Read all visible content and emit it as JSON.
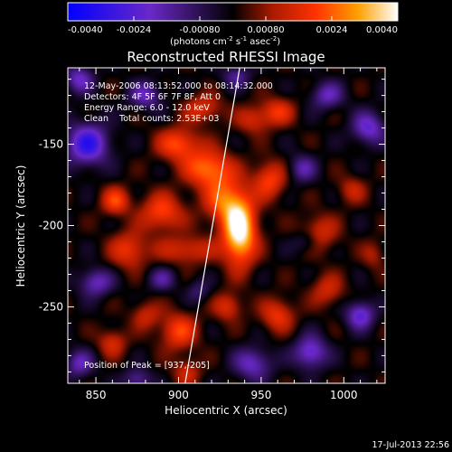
{
  "chart_data": {
    "type": "heatmap",
    "title": "Reconstructed RHESSI Image",
    "xlabel": "Heliocentric X (arcsec)",
    "ylabel": "Heliocentric Y (arcsec)",
    "xlim": [
      833,
      1025
    ],
    "ylim": [
      -297,
      -103
    ],
    "x_ticks": [
      850,
      900,
      950,
      1000
    ],
    "x_tick_labels": [
      "850",
      "900",
      "950",
      "1000"
    ],
    "y_ticks": [
      -150,
      -200,
      -250
    ],
    "y_tick_labels": [
      "-150",
      "-200",
      "-250"
    ],
    "colorbar": {
      "min": -0.004,
      "max": 0.004,
      "ticks": [
        -0.004,
        -0.0024,
        -0.0008,
        0.0008,
        0.0024,
        0.004
      ],
      "tick_labels": [
        "-0.0040",
        "-0.0024",
        "-0.00080",
        "0.00080",
        "0.0024",
        "0.0040"
      ],
      "label_main": "(photons cm",
      "label_exp1": "-2",
      "label_mid1": " s",
      "label_exp2": "-1",
      "label_mid2": " asec",
      "label_exp3": "-2",
      "label_end": ")"
    },
    "annotations": [
      "12-May-2006 08:13:52.000 to 08:14:32.000",
      "Detectors: 4F 5F 6F 7F 8F, Att 0",
      "Energy Range: 6.0 - 12.0 keV",
      "Clean    Total counts: 2.53E+03"
    ],
    "peak_label": "Position of Peak = [937,-205]",
    "peak": [
      937,
      -205
    ],
    "limb_line": [
      [
        904,
        -297
      ],
      [
        937,
        -103
      ]
    ],
    "sources": [
      {
        "x": 937,
        "y": -204,
        "sx": 7,
        "sy": 14,
        "amp": 0.0042
      },
      {
        "x": 928,
        "y": -185,
        "sx": 9,
        "sy": 10,
        "amp": 0.0022
      },
      {
        "x": 918,
        "y": -165,
        "sx": 10,
        "sy": 8,
        "amp": 0.0026
      },
      {
        "x": 900,
        "y": -150,
        "sx": 9,
        "sy": 7,
        "amp": 0.0022
      },
      {
        "x": 890,
        "y": -192,
        "sx": 9,
        "sy": 8,
        "amp": 0.0021
      },
      {
        "x": 870,
        "y": -215,
        "sx": 8,
        "sy": 8,
        "amp": 0.0018
      },
      {
        "x": 862,
        "y": -185,
        "sx": 6,
        "sy": 6,
        "amp": 0.002
      },
      {
        "x": 905,
        "y": -215,
        "sx": 12,
        "sy": 6,
        "amp": 0.0016
      },
      {
        "x": 955,
        "y": -172,
        "sx": 7,
        "sy": 8,
        "amp": 0.002
      },
      {
        "x": 960,
        "y": -130,
        "sx": 7,
        "sy": 6,
        "amp": 0.0017
      },
      {
        "x": 915,
        "y": -128,
        "sx": 8,
        "sy": 6,
        "amp": 0.0016
      },
      {
        "x": 945,
        "y": -135,
        "sx": 7,
        "sy": 6,
        "amp": 0.0014
      },
      {
        "x": 985,
        "y": -205,
        "sx": 8,
        "sy": 8,
        "amp": 0.0016
      },
      {
        "x": 990,
        "y": -240,
        "sx": 7,
        "sy": 7,
        "amp": 0.0014
      },
      {
        "x": 960,
        "y": -255,
        "sx": 7,
        "sy": 7,
        "amp": 0.0018
      },
      {
        "x": 930,
        "y": -250,
        "sx": 6,
        "sy": 6,
        "amp": 0.0016
      },
      {
        "x": 900,
        "y": -265,
        "sx": 8,
        "sy": 8,
        "amp": 0.002
      },
      {
        "x": 880,
        "y": -255,
        "sx": 6,
        "sy": 6,
        "amp": 0.0013
      },
      {
        "x": 860,
        "y": -272,
        "sx": 6,
        "sy": 6,
        "amp": 0.0015
      },
      {
        "x": 905,
        "y": -290,
        "sx": 6,
        "sy": 6,
        "amp": 0.0013
      },
      {
        "x": 1005,
        "y": -178,
        "sx": 6,
        "sy": 6,
        "amp": 0.0012
      },
      {
        "x": 1018,
        "y": -218,
        "sx": 5,
        "sy": 6,
        "amp": 0.001
      },
      {
        "x": 845,
        "y": -150,
        "sx": 9,
        "sy": 9,
        "amp": -0.003
      },
      {
        "x": 840,
        "y": -110,
        "sx": 6,
        "sy": 6,
        "amp": -0.002
      },
      {
        "x": 880,
        "y": -120,
        "sx": 7,
        "sy": 6,
        "amp": -0.0018
      },
      {
        "x": 850,
        "y": -235,
        "sx": 7,
        "sy": 6,
        "amp": -0.002
      },
      {
        "x": 840,
        "y": -285,
        "sx": 6,
        "sy": 6,
        "amp": -0.0018
      },
      {
        "x": 875,
        "y": -295,
        "sx": 6,
        "sy": 5,
        "amp": -0.0016
      },
      {
        "x": 890,
        "y": -233,
        "sx": 6,
        "sy": 5,
        "amp": -0.0014
      },
      {
        "x": 945,
        "y": -285,
        "sx": 8,
        "sy": 7,
        "amp": -0.002
      },
      {
        "x": 980,
        "y": -278,
        "sx": 7,
        "sy": 7,
        "amp": -0.0024
      },
      {
        "x": 1010,
        "y": -255,
        "sx": 6,
        "sy": 6,
        "amp": -0.0024
      },
      {
        "x": 1015,
        "y": -140,
        "sx": 7,
        "sy": 7,
        "amp": -0.0022
      },
      {
        "x": 990,
        "y": -120,
        "sx": 7,
        "sy": 6,
        "amp": -0.0018
      },
      {
        "x": 975,
        "y": -165,
        "sx": 6,
        "sy": 6,
        "amp": -0.0016
      },
      {
        "x": 978,
        "y": -210,
        "sx": 6,
        "sy": 5,
        "amp": -0.0012
      },
      {
        "x": 935,
        "y": -108,
        "sx": 6,
        "sy": 5,
        "amp": -0.0014
      },
      {
        "x": 912,
        "y": -240,
        "sx": 5,
        "sy": 5,
        "amp": -0.001
      }
    ]
  },
  "footer": {
    "date": "17-Jul-2013 22:56"
  },
  "colors": {
    "background": "#000000",
    "foreground": "#ffffff",
    "limb_line": "#ffffff"
  }
}
